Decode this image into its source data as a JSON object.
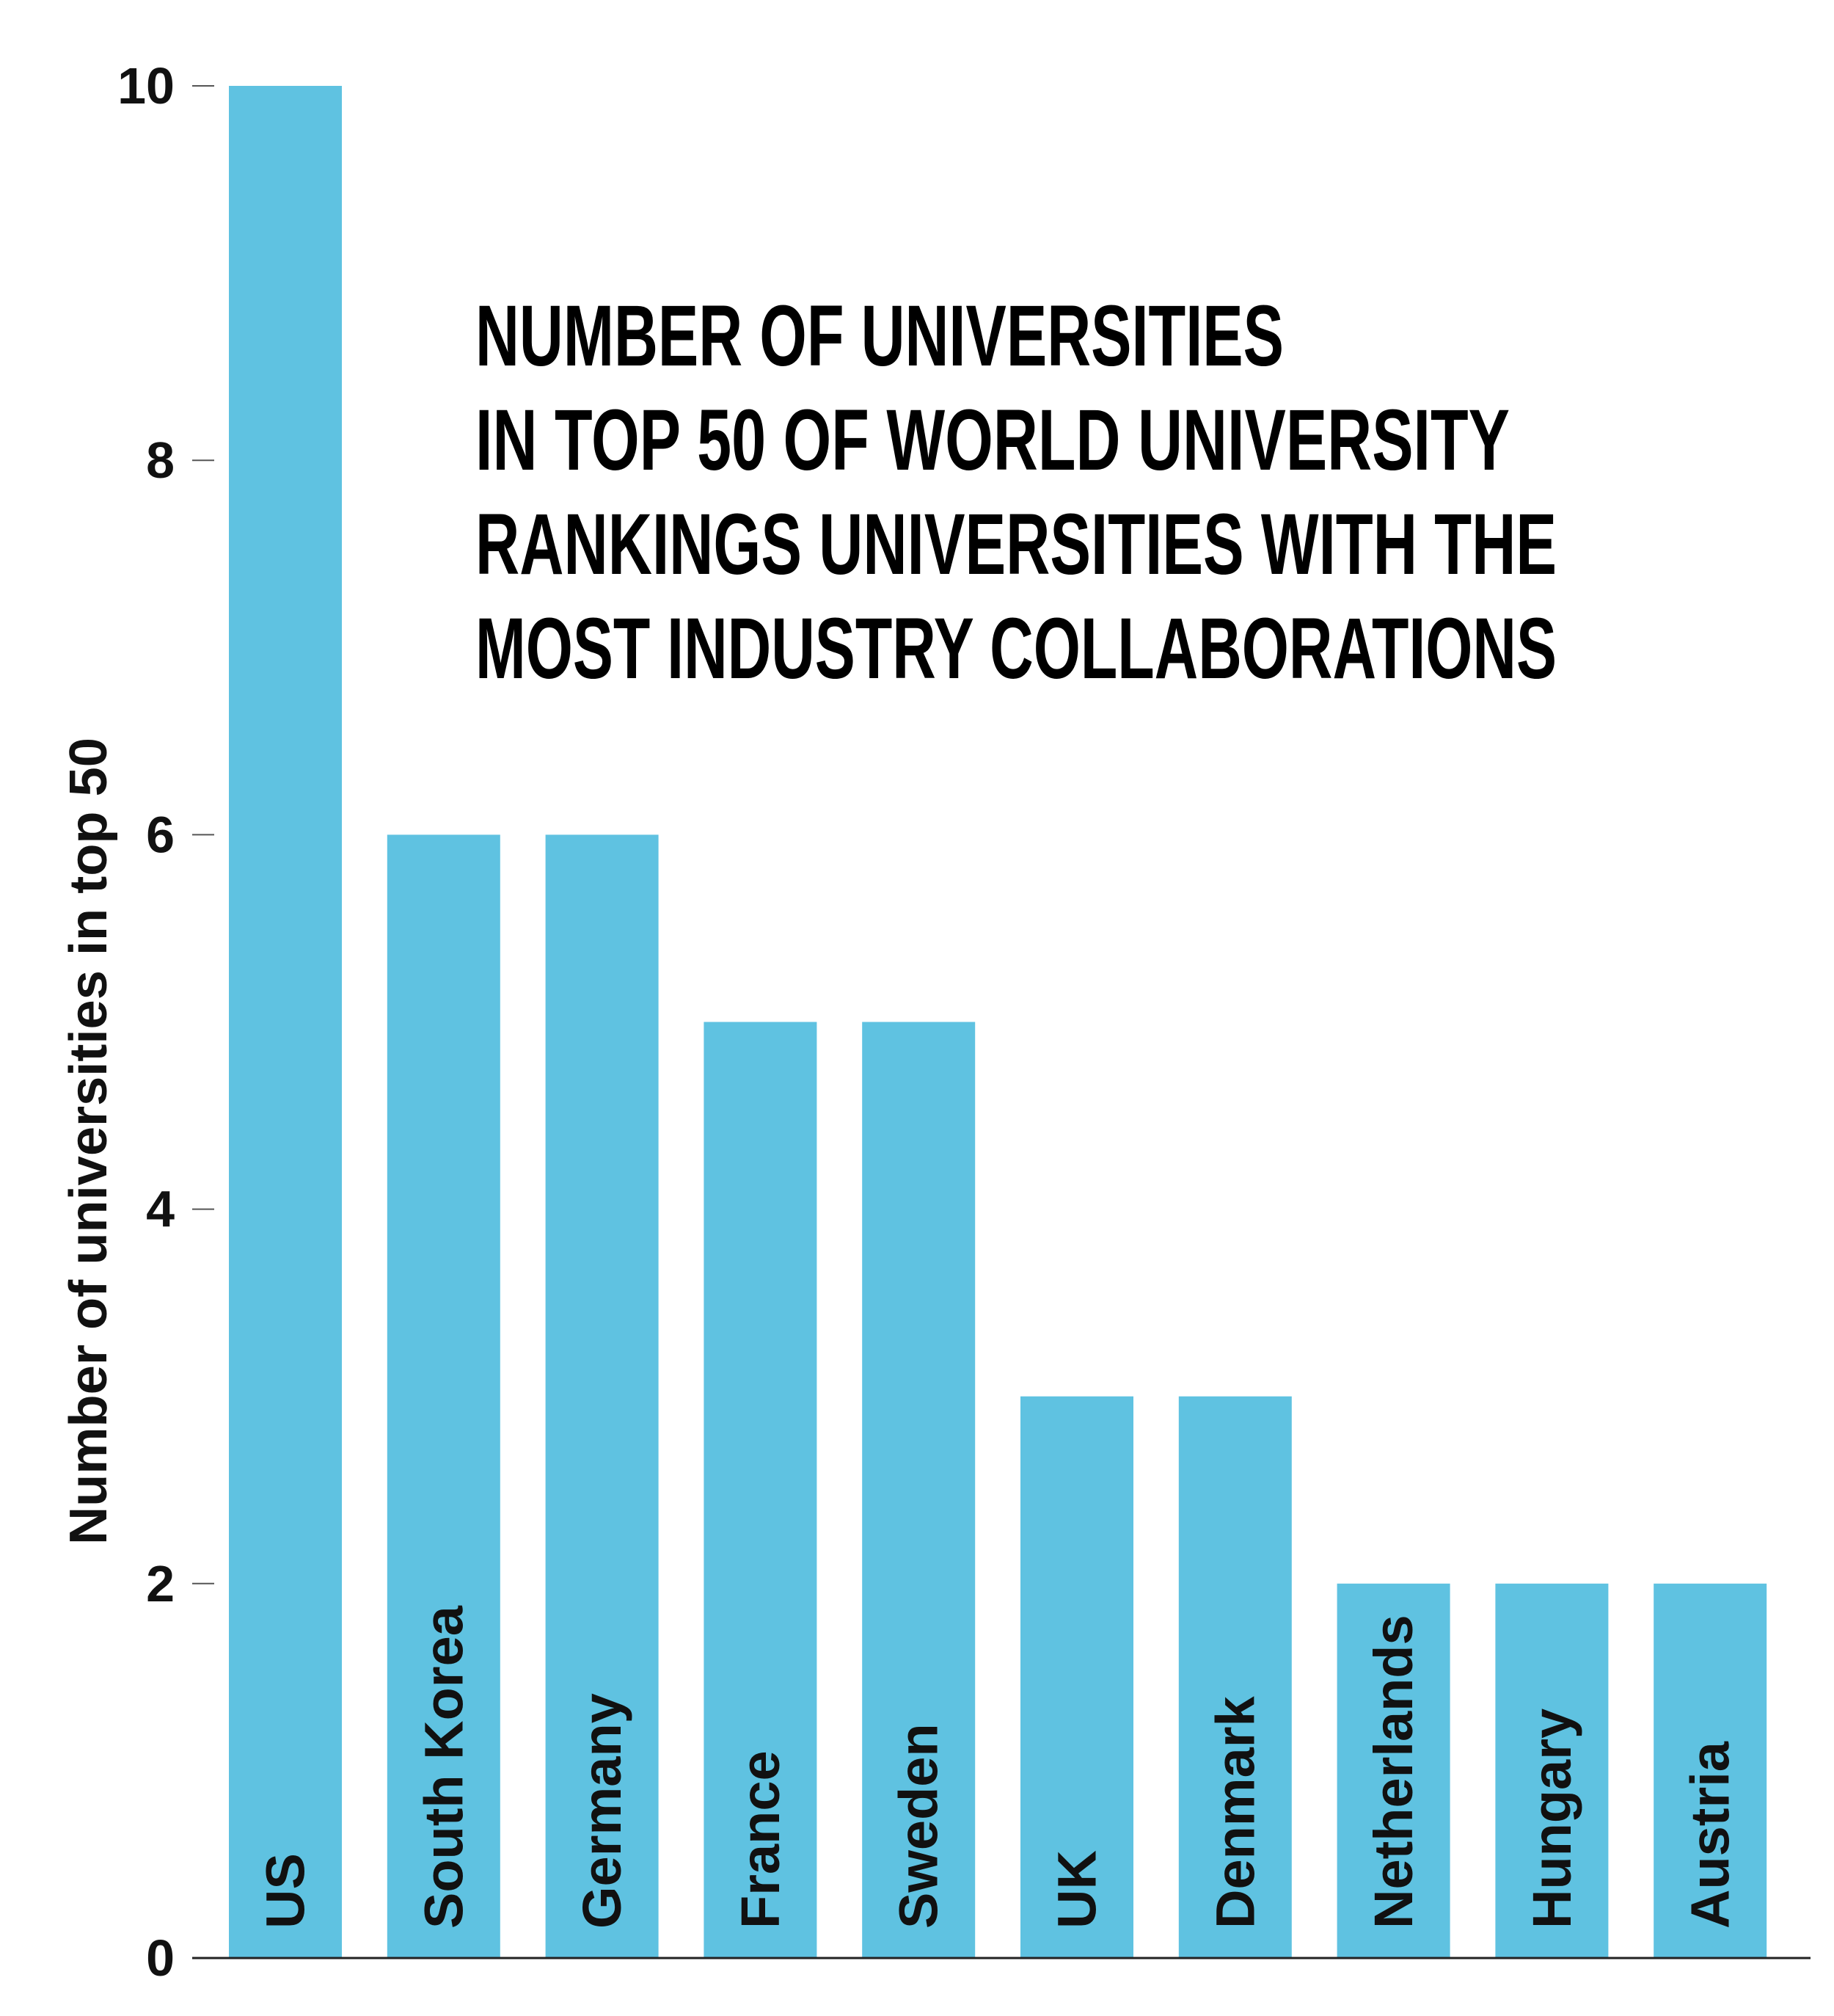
{
  "chart_data": {
    "type": "bar",
    "title_lines": [
      "NUMBER OF UNIVERSITIES",
      "IN TOP 50 OF WORLD UNIVERSITY",
      "RANKINGS UNIVERSITIES WITH THE",
      "MOST INDUSTRY COLLABORATIONS"
    ],
    "ylabel": "Number of universities in top 50",
    "xlabel": "",
    "categories": [
      "US",
      "South Korea",
      "Germany",
      "France",
      "Sweden",
      "UK",
      "Denmark",
      "Netherlands",
      "Hungary",
      "Austria"
    ],
    "values": [
      10,
      6,
      6,
      5,
      5,
      3,
      3,
      2,
      2,
      2
    ],
    "ylim": [
      0,
      10
    ],
    "yticks": [
      "0",
      "2",
      "4",
      "6",
      "8",
      "10"
    ],
    "grid": false,
    "bar_color": "#5fc2e1",
    "category_labels_inside_bars": true
  }
}
